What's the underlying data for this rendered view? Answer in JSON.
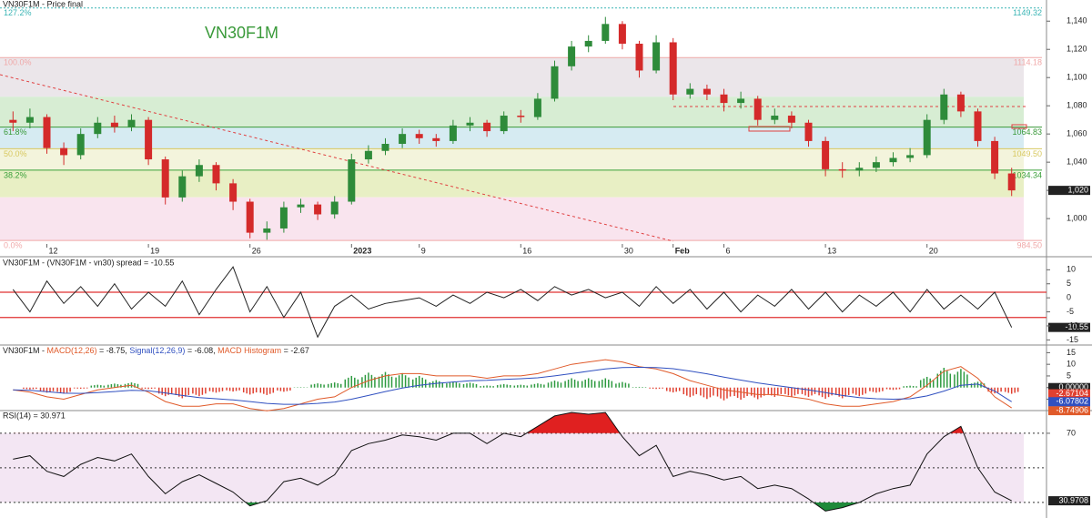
{
  "chart_data": [
    {
      "type": "candlestick",
      "title": "VN30F1M - Price final",
      "watermark": "VN30F1M",
      "categories": [
        null,
        null,
        "12",
        null,
        null,
        null,
        null,
        null,
        "19",
        null,
        null,
        null,
        null,
        null,
        "26",
        null,
        null,
        null,
        null,
        null,
        "2023",
        null,
        null,
        null,
        "9",
        null,
        null,
        null,
        null,
        null,
        "16",
        null,
        null,
        null,
        null,
        null,
        "30",
        null,
        null,
        "Feb",
        null,
        null,
        "6",
        null,
        null,
        null,
        null,
        null,
        "13",
        null,
        null,
        null,
        null,
        null,
        "20",
        null,
        null,
        null,
        null,
        null
      ],
      "open": [
        1070,
        1068,
        1072,
        1050,
        1045,
        1060,
        1068,
        1065,
        1070,
        1042,
        1015,
        1030,
        1038,
        1025,
        1012,
        990,
        993,
        1008,
        1010,
        1003,
        1012,
        1042,
        1048,
        1053,
        1060,
        1057,
        1055,
        1066,
        1068,
        1062,
        1073,
        1072,
        1085,
        1108,
        1122,
        1126,
        1138,
        1124,
        1105,
        1125,
        1088,
        1092,
        1088,
        1082,
        1085,
        1070,
        1073,
        1068,
        1055,
        1035,
        1034,
        1036,
        1040,
        1043,
        1045,
        1070,
        1088,
        1076,
        1055,
        1032
      ],
      "high": [
        1076,
        1078,
        1074,
        1054,
        1064,
        1072,
        1073,
        1074,
        1072,
        1044,
        1034,
        1042,
        1040,
        1028,
        1014,
        998,
        1012,
        1014,
        1012,
        1016,
        1046,
        1052,
        1057,
        1064,
        1063,
        1060,
        1070,
        1072,
        1070,
        1076,
        1077,
        1089,
        1112,
        1126,
        1130,
        1143,
        1140,
        1126,
        1130,
        1128,
        1096,
        1095,
        1092,
        1090,
        1087,
        1078,
        1076,
        1070,
        1058,
        1040,
        1040,
        1044,
        1047,
        1050,
        1074,
        1092,
        1090,
        1078,
        1058,
        1036
      ],
      "low": [
        1062,
        1064,
        1046,
        1038,
        1042,
        1057,
        1061,
        1062,
        1038,
        1010,
        1012,
        1026,
        1020,
        1006,
        986,
        985,
        990,
        1004,
        999,
        1000,
        1010,
        1039,
        1045,
        1050,
        1053,
        1051,
        1053,
        1062,
        1058,
        1060,
        1068,
        1070,
        1083,
        1105,
        1118,
        1124,
        1120,
        1100,
        1103,
        1084,
        1085,
        1084,
        1076,
        1078,
        1066,
        1067,
        1064,
        1051,
        1030,
        1029,
        1030,
        1033,
        1037,
        1040,
        1043,
        1067,
        1072,
        1051,
        1028,
        1016
      ],
      "close": [
        1068,
        1072,
        1050,
        1045,
        1060,
        1068,
        1065,
        1070,
        1042,
        1015,
        1030,
        1038,
        1025,
        1012,
        990,
        993,
        1008,
        1010,
        1003,
        1012,
        1042,
        1048,
        1053,
        1060,
        1057,
        1055,
        1066,
        1068,
        1062,
        1073,
        1072,
        1085,
        1108,
        1122,
        1126,
        1138,
        1124,
        1105,
        1125,
        1088,
        1092,
        1088,
        1082,
        1085,
        1070,
        1073,
        1068,
        1055,
        1035,
        1034,
        1036,
        1040,
        1043,
        1045,
        1070,
        1088,
        1076,
        1055,
        1032,
        1020
      ],
      "last_close_label": "1,020",
      "up_color": "#2e8b3a",
      "down_color": "#d42a2a",
      "ylim": [
        982,
        1155
      ],
      "yticks": [
        {
          "value": 1000,
          "label": "1,000"
        },
        {
          "value": 1020,
          "label": "1,020"
        },
        {
          "value": 1040,
          "label": "1,040"
        },
        {
          "value": 1060,
          "label": "1,060"
        },
        {
          "value": 1080,
          "label": "1,080"
        },
        {
          "value": 1100,
          "label": "1,100"
        },
        {
          "value": 1120,
          "label": "1,120"
        },
        {
          "value": 1140,
          "label": "1,140"
        }
      ],
      "fib_levels": [
        {
          "label": "127.2%",
          "value": 1149.32,
          "value_label": "1149.32",
          "color": "#3ab5b5"
        },
        {
          "label": "100.0%",
          "value": 1114.18,
          "value_label": "1114.18",
          "color": "#f0a8a8"
        },
        {
          "label": "61.8%",
          "value": 1064.83,
          "value_label": "1064.83",
          "color": "#3a9a3a"
        },
        {
          "label": "50.0%",
          "value": 1049.5,
          "value_label": "1049.50",
          "color": "#d8c860"
        },
        {
          "label": "38.2%",
          "value": 1034.34,
          "value_label": "1034.34",
          "color": "#3aa03a"
        },
        {
          "label": "0.0%",
          "value": 984.5,
          "value_label": "984.50",
          "color": "#f0a8a8"
        }
      ],
      "fib_bands": [
        {
          "from": 1114.18,
          "to": 1086.4,
          "color": "#ebe6ea"
        },
        {
          "from": 1086.4,
          "to": 1064.83,
          "color": "#d7edd3"
        },
        {
          "from": 1064.83,
          "to": 1049.5,
          "color": "#d6ebf2"
        },
        {
          "from": 1049.5,
          "to": 1034.34,
          "color": "#f3f4dc"
        },
        {
          "from": 1034.34,
          "to": 1015.1,
          "color": "#e8efc4"
        },
        {
          "from": 1015.1,
          "to": 984.5,
          "color": "#f9e4ee"
        }
      ]
    },
    {
      "type": "line",
      "title": "VN30F1M - (VN30F1M - vn30) spread = -10.55",
      "series": [
        {
          "color": "#222222",
          "values": [
            3,
            -5,
            6,
            -2,
            4,
            -3,
            5,
            -4,
            2,
            -3,
            6,
            -6,
            3,
            11,
            -5,
            4,
            -7,
            2,
            -14,
            -3,
            1,
            -4,
            -2,
            -1,
            0,
            -3,
            1,
            -2,
            2,
            0,
            3,
            -1,
            4,
            1,
            3,
            0,
            2,
            -3,
            4,
            -2,
            3,
            -4,
            2,
            -5,
            1,
            -3,
            3,
            -4,
            2,
            -5,
            1,
            -3,
            2,
            -5,
            3,
            -4,
            1,
            -4,
            2,
            -10.55
          ]
        }
      ],
      "levels": [
        2,
        -7
      ],
      "level_color": "#e03030",
      "ylim": [
        -16.5,
        14
      ],
      "yticks": [
        10,
        5,
        0,
        -5,
        -10,
        -15
      ]
    },
    {
      "type": "macd",
      "title_parts": [
        {
          "text": "VN30F1M - ",
          "color": "#222222"
        },
        {
          "text": "MACD(12,26)",
          "color": "#e05a2a"
        },
        {
          "text": " = -8.75, ",
          "color": "#222222"
        },
        {
          "text": "Signal(12,26,9)",
          "color": "#3050c0"
        },
        {
          "text": " = -6.08, ",
          "color": "#222222"
        },
        {
          "text": "MACD Histogram",
          "color": "#e05a2a"
        },
        {
          "text": " = -2.67",
          "color": "#222222"
        }
      ],
      "series": [
        {
          "color": "#e05a2a",
          "values": [
            -1,
            -2,
            -4,
            -5,
            -3,
            -1,
            0,
            1,
            -2,
            -6,
            -8,
            -8,
            -7,
            -7,
            -9,
            -10,
            -9,
            -7,
            -5,
            -4,
            0,
            3,
            5,
            6,
            6,
            5,
            5,
            5,
            4,
            5,
            5,
            6,
            8,
            10,
            11,
            12,
            11,
            9,
            8,
            6,
            3,
            1,
            -1,
            -2,
            -3,
            -3,
            -4,
            -5,
            -7,
            -8,
            -8,
            -7,
            -6,
            -4,
            1,
            7,
            9,
            4,
            -4,
            -8.74906
          ]
        },
        {
          "color": "#3050c0",
          "values": [
            -1,
            -1.2,
            -1.8,
            -2.4,
            -2.5,
            -2.2,
            -1.7,
            -1.2,
            -1.4,
            -2.3,
            -3.4,
            -4.3,
            -4.8,
            -5.3,
            -6,
            -6.8,
            -7.2,
            -7.2,
            -6.8,
            -6.2,
            -5,
            -3.4,
            -1.7,
            -0.2,
            1,
            1.8,
            2.4,
            2.9,
            3.1,
            3.5,
            3.8,
            4.2,
            5,
            6,
            7,
            8,
            8.6,
            8.7,
            8.6,
            8.1,
            7.1,
            5.9,
            4.5,
            3.2,
            2,
            1,
            0,
            -1,
            -2.2,
            -3.4,
            -4.3,
            -4.8,
            -5,
            -4.8,
            -3.6,
            -1.5,
            1,
            1.5,
            -1.5,
            -6.07802
          ]
        }
      ],
      "histogram": {
        "up_color": "#2e9a40",
        "down_color": "#e04030",
        "values": [
          0,
          -0.8,
          -2.2,
          -2.6,
          -0.5,
          1.2,
          1.7,
          2.2,
          -0.6,
          -3.7,
          -4.6,
          -3.7,
          -2.2,
          -1.7,
          -3,
          -3.2,
          -1.8,
          0.2,
          1.8,
          2.2,
          5,
          6.4,
          6.7,
          6.2,
          5,
          3.2,
          2.6,
          2.1,
          0.9,
          1.5,
          1.2,
          1.8,
          3,
          4,
          4,
          4,
          2.4,
          0.3,
          -0.6,
          -2.1,
          -4.1,
          -4.9,
          -5.5,
          -5.2,
          -5,
          -4,
          -4,
          -4,
          -4.8,
          -4.6,
          -3.7,
          -2.2,
          -1,
          0.8,
          4.6,
          8.5,
          8,
          2.5,
          -2.5,
          -2.67104
        ]
      },
      "zero_label": {
        "value": 0,
        "label": "0.00000"
      },
      "ylim": [
        -9.5,
        17.5
      ],
      "yticks": [
        15,
        10,
        5,
        0,
        -5
      ]
    },
    {
      "type": "line",
      "title": "RSI(14) = 30.971",
      "series": [
        {
          "color": "#111111",
          "values": [
            55,
            57,
            48,
            45,
            52,
            56,
            54,
            58,
            45,
            35,
            42,
            46,
            41,
            36,
            28,
            31,
            42,
            44,
            40,
            46,
            60,
            64,
            66,
            69,
            68,
            66,
            70,
            70,
            64,
            70,
            68,
            74,
            80,
            82,
            81,
            82,
            68,
            57,
            63,
            45,
            48,
            46,
            43,
            45,
            38,
            40,
            38,
            32,
            25,
            27,
            30,
            35,
            38,
            40,
            58,
            68,
            74,
            50,
            36,
            30.9708
          ]
        }
      ],
      "band": [
        70,
        30
      ],
      "band_color": "#f3e6f3",
      "levels": [
        70,
        50,
        30
      ],
      "over_color": "#e02020",
      "under_color": "#1f8a3a",
      "ylim": [
        21,
        82.6
      ],
      "yticks": [
        70
      ]
    }
  ]
}
